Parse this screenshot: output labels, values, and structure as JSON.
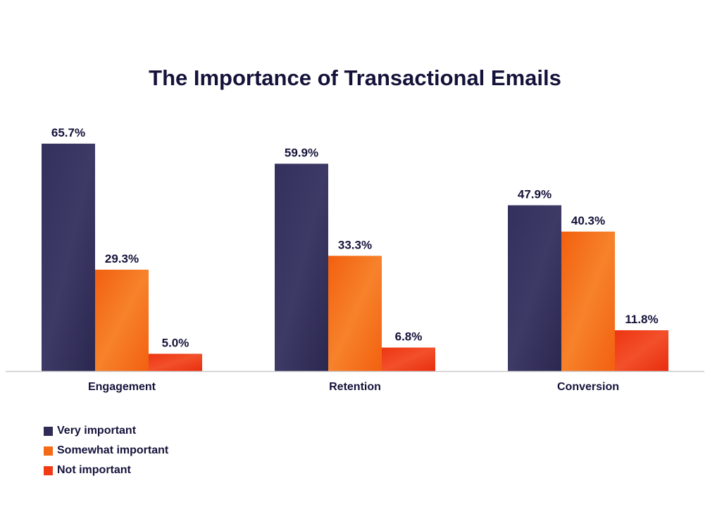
{
  "chart_data": {
    "type": "bar",
    "title": "The Importance of Transactional Emails",
    "categories": [
      "Engagement",
      "Retention",
      "Conversion"
    ],
    "series": [
      {
        "name": "Very important",
        "color": "#2f2c56",
        "values": [
          65.7,
          59.9,
          47.9
        ],
        "labels": [
          "65.7%",
          "59.9%",
          "47.9%"
        ]
      },
      {
        "name": "Somewhat important",
        "color": "#f56a16",
        "values": [
          29.3,
          33.3,
          40.3
        ],
        "labels": [
          "29.3%",
          "33.3%",
          "40.3%"
        ]
      },
      {
        "name": "Not important",
        "color": "#f03c14",
        "values": [
          5.0,
          6.8,
          11.8
        ],
        "labels": [
          "5.0%",
          "6.8%",
          "11.8%"
        ]
      }
    ],
    "ylim": [
      0,
      70
    ],
    "grid": false,
    "legend": "bottom-left",
    "unit": "%"
  }
}
